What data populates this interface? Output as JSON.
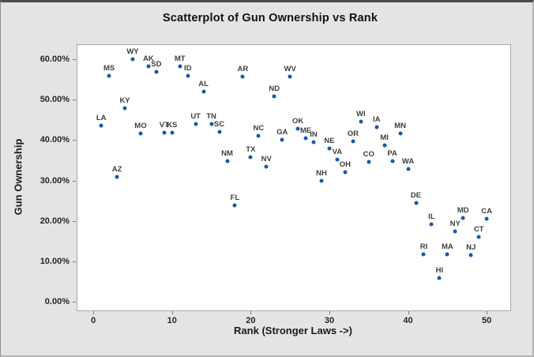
{
  "window": {
    "background": "#e4e4e4",
    "plot_background": "#ffffff",
    "plot_border": "#a6a6a6"
  },
  "chart_data": {
    "type": "scatter",
    "title": "Scatterplot of Gun Ownership vs Rank",
    "xlabel": "Rank (Stronger Laws ->)",
    "ylabel": "Gun Ownership",
    "xlim": [
      -2.03,
      53.0
    ],
    "ylim": [
      -2.1,
      63.5
    ],
    "grid": false,
    "legend": "none",
    "marker_color": "#1959a8",
    "point_label_color": "#3f3f3f",
    "x_ticks": [
      0,
      10,
      20,
      30,
      40,
      50
    ],
    "x_tick_labels": [
      "0",
      "10",
      "20",
      "30",
      "40",
      "50"
    ],
    "y_ticks": [
      0,
      10,
      20,
      30,
      40,
      50,
      60
    ],
    "y_tick_labels": [
      "0.00%",
      "10.00%",
      "20.00%",
      "30.00%",
      "40.00%",
      "50.00%",
      "60.00%"
    ],
    "points": [
      {
        "label": "LA",
        "x": 1,
        "y": 43.6
      },
      {
        "label": "MS",
        "x": 2,
        "y": 55.8
      },
      {
        "label": "AZ",
        "x": 3,
        "y": 30.9
      },
      {
        "label": "KY",
        "x": 4,
        "y": 47.8
      },
      {
        "label": "WY",
        "x": 5,
        "y": 59.9
      },
      {
        "label": "MO",
        "x": 6,
        "y": 41.6
      },
      {
        "label": "AK",
        "x": 7,
        "y": 58.2
      },
      {
        "label": "SD",
        "x": 8,
        "y": 56.9
      },
      {
        "label": "VT",
        "x": 9,
        "y": 41.8
      },
      {
        "label": "KS",
        "x": 10,
        "y": 41.8
      },
      {
        "label": "MT",
        "x": 11,
        "y": 58.2
      },
      {
        "label": "ID",
        "x": 12,
        "y": 55.8
      },
      {
        "label": "UT",
        "x": 13,
        "y": 43.9
      },
      {
        "label": "AL",
        "x": 14,
        "y": 52.0
      },
      {
        "label": "TN",
        "x": 15,
        "y": 43.9
      },
      {
        "label": "SC",
        "x": 16,
        "y": 42.1
      },
      {
        "label": "NM",
        "x": 17,
        "y": 34.8
      },
      {
        "label": "FL",
        "x": 18,
        "y": 23.8
      },
      {
        "label": "AR",
        "x": 19,
        "y": 55.6
      },
      {
        "label": "TX",
        "x": 20,
        "y": 35.8
      },
      {
        "label": "NC",
        "x": 21,
        "y": 41.0
      },
      {
        "label": "NV",
        "x": 22,
        "y": 33.5
      },
      {
        "label": "ND",
        "x": 23,
        "y": 50.8
      },
      {
        "label": "GA",
        "x": 24,
        "y": 40.1
      },
      {
        "label": "WV",
        "x": 25,
        "y": 55.6
      },
      {
        "label": "OK",
        "x": 26,
        "y": 42.8
      },
      {
        "label": "ME",
        "x": 27,
        "y": 40.5
      },
      {
        "label": "IN",
        "x": 28,
        "y": 39.4
      },
      {
        "label": "NH",
        "x": 29,
        "y": 29.9
      },
      {
        "label": "NE",
        "x": 30,
        "y": 37.9
      },
      {
        "label": "VA",
        "x": 31,
        "y": 35.1
      },
      {
        "label": "OH",
        "x": 32,
        "y": 32.1
      },
      {
        "label": "OR",
        "x": 33,
        "y": 39.7
      },
      {
        "label": "WI",
        "x": 34,
        "y": 44.6
      },
      {
        "label": "CO",
        "x": 35,
        "y": 34.7
      },
      {
        "label": "IA",
        "x": 36,
        "y": 43.1
      },
      {
        "label": "MI",
        "x": 37,
        "y": 38.7
      },
      {
        "label": "PA",
        "x": 38,
        "y": 34.8
      },
      {
        "label": "MN",
        "x": 39,
        "y": 41.6
      },
      {
        "label": "WA",
        "x": 40,
        "y": 32.9
      },
      {
        "label": "DE",
        "x": 41,
        "y": 24.5
      },
      {
        "label": "RI",
        "x": 42,
        "y": 11.7
      },
      {
        "label": "IL",
        "x": 43,
        "y": 19.1
      },
      {
        "label": "HI",
        "x": 44,
        "y": 6.0
      },
      {
        "label": "MA",
        "x": 45,
        "y": 11.7
      },
      {
        "label": "NY",
        "x": 46,
        "y": 17.4
      },
      {
        "label": "MD",
        "x": 47,
        "y": 20.8
      },
      {
        "label": "NJ",
        "x": 48,
        "y": 11.5
      },
      {
        "label": "CT",
        "x": 49,
        "y": 16.1
      },
      {
        "label": "CA",
        "x": 50,
        "y": 20.6
      }
    ]
  }
}
